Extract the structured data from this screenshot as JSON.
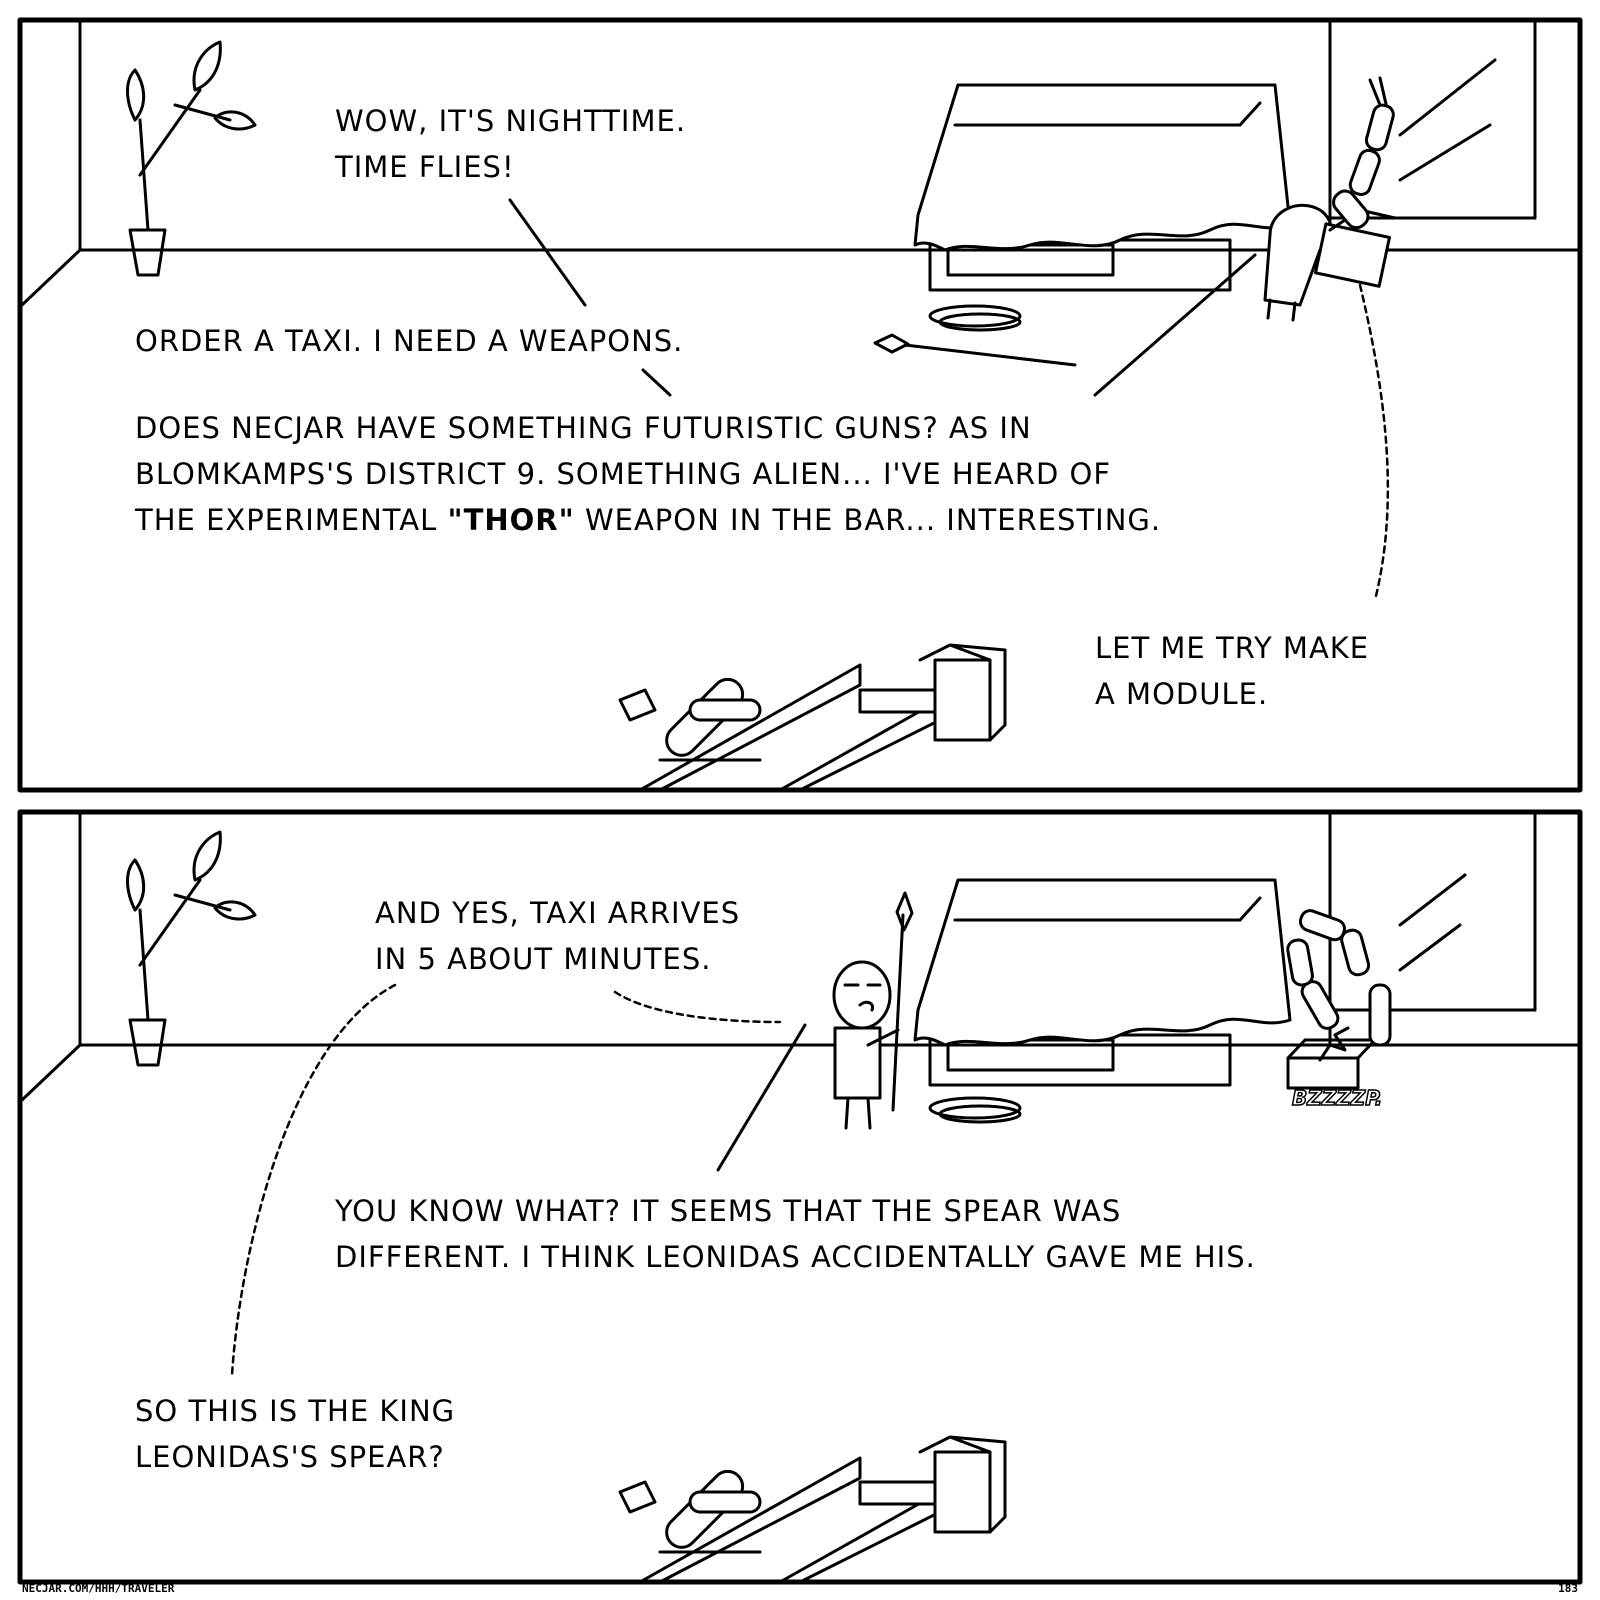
{
  "panel1": {
    "caption1": "Wow, it's nighttime.\nTime flies!",
    "caption2": "Order a taxi. I need a weapons.",
    "caption3_part1": "Does Necjar have something futuristic guns? As in\nBlomkamps's District 9. Something alien... I've heard of\nthe experimental ",
    "caption3_bold": "\"THOR\"",
    "caption3_part2": " weapon in the bar... Interesting.",
    "caption4": "Let me try make\na module."
  },
  "panel2": {
    "caption1": "And yes, taxi arrives\nin 5 about minutes.",
    "caption2": "You know what? It seems that the spear was\ndifferent. I think Leonidas accidentally gave me his.",
    "caption3": "So this is the King\nLeonidas's spear?",
    "sound_effect": "BZZZZP."
  },
  "footer": {
    "url": "NECJAR.COM/HHH/TRAVELER",
    "page_number": "183"
  }
}
